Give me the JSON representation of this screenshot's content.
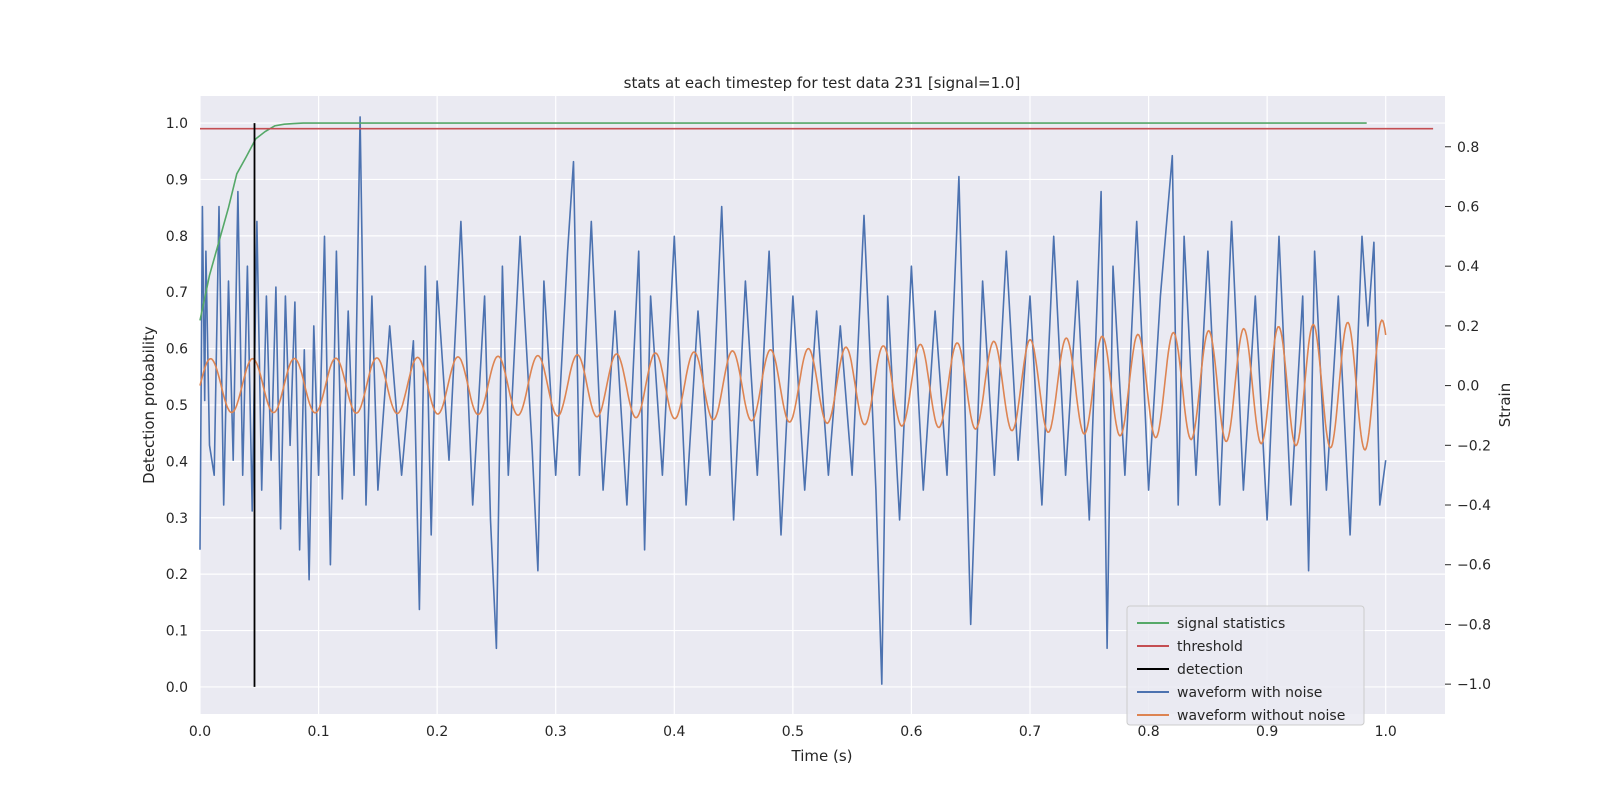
{
  "chart_data": {
    "type": "line",
    "title": "stats at each timestep for test data 231 [signal=1.0]",
    "xlabel": "Time (s)",
    "ylabel_left": "Detection probability",
    "ylabel_right": "Strain",
    "xlim": [
      0.0,
      1.05
    ],
    "ylim_left": [
      -0.048,
      1.048
    ],
    "ylim_right": [
      -1.1,
      0.97
    ],
    "x_ticks": [
      0.0,
      0.1,
      0.2,
      0.3,
      0.4,
      0.5,
      0.6,
      0.7,
      0.8,
      0.9,
      1.0
    ],
    "x_tick_labels": [
      "0.0",
      "0.1",
      "0.2",
      "0.3",
      "0.4",
      "0.5",
      "0.6",
      "0.7",
      "0.8",
      "0.9",
      "1.0"
    ],
    "y_left_ticks": [
      0.0,
      0.1,
      0.2,
      0.3,
      0.4,
      0.5,
      0.6,
      0.7,
      0.8,
      0.9,
      1.0
    ],
    "y_left_tick_labels": [
      "0.0",
      "0.1",
      "0.2",
      "0.3",
      "0.4",
      "0.5",
      "0.6",
      "0.7",
      "0.8",
      "0.9",
      "1.0"
    ],
    "y_right_ticks": [
      -1.0,
      -0.8,
      -0.6,
      -0.4,
      -0.2,
      0.0,
      0.2,
      0.4,
      0.6,
      0.8
    ],
    "y_right_tick_labels": [
      "−1.0",
      "−0.8",
      "−0.6",
      "−0.4",
      "−0.2",
      "0.0",
      "0.2",
      "0.4",
      "0.6",
      "0.8"
    ],
    "grid": true,
    "legend_position": "bottom-right",
    "series": [
      {
        "name": "signal statistics",
        "axis": "left",
        "color": "#55a868",
        "x": [
          0.0,
          0.008,
          0.016,
          0.024,
          0.031,
          0.039,
          0.047,
          0.055,
          0.063,
          0.071,
          0.079,
          0.087,
          0.1,
          0.2,
          0.3,
          0.4,
          0.5,
          0.6,
          0.7,
          0.8,
          0.9,
          0.984
        ],
        "y": [
          0.65,
          0.73,
          0.79,
          0.85,
          0.91,
          0.94,
          0.972,
          0.985,
          0.995,
          0.998,
          0.999,
          1.0,
          1.0,
          1.0,
          1.0,
          1.0,
          1.0,
          1.0,
          1.0,
          1.0,
          1.0,
          1.0
        ]
      },
      {
        "name": "threshold",
        "axis": "left",
        "color": "#c44e52",
        "x": [
          0.0,
          1.04
        ],
        "y": [
          0.99,
          0.99
        ]
      },
      {
        "name": "detection",
        "axis": "left",
        "color": "#000000",
        "x": [
          0.046,
          0.046
        ],
        "y": [
          0.0,
          1.0
        ]
      },
      {
        "name": "waveform with noise",
        "axis": "right",
        "color": "#4c72b0",
        "x": [
          0.0,
          0.002,
          0.004,
          0.005,
          0.008,
          0.012,
          0.016,
          0.02,
          0.024,
          0.028,
          0.032,
          0.036,
          0.04,
          0.044,
          0.048,
          0.052,
          0.056,
          0.06,
          0.064,
          0.068,
          0.072,
          0.076,
          0.08,
          0.084,
          0.088,
          0.092,
          0.096,
          0.1,
          0.105,
          0.11,
          0.115,
          0.12,
          0.125,
          0.13,
          0.135,
          0.14,
          0.145,
          0.15,
          0.16,
          0.17,
          0.18,
          0.185,
          0.19,
          0.195,
          0.2,
          0.21,
          0.22,
          0.23,
          0.24,
          0.245,
          0.25,
          0.255,
          0.26,
          0.27,
          0.28,
          0.285,
          0.29,
          0.3,
          0.31,
          0.315,
          0.32,
          0.33,
          0.34,
          0.35,
          0.36,
          0.37,
          0.375,
          0.38,
          0.39,
          0.4,
          0.41,
          0.42,
          0.43,
          0.44,
          0.45,
          0.46,
          0.47,
          0.48,
          0.49,
          0.5,
          0.51,
          0.52,
          0.53,
          0.54,
          0.55,
          0.56,
          0.57,
          0.575,
          0.58,
          0.59,
          0.6,
          0.61,
          0.62,
          0.63,
          0.64,
          0.65,
          0.66,
          0.67,
          0.68,
          0.69,
          0.7,
          0.71,
          0.72,
          0.73,
          0.74,
          0.75,
          0.76,
          0.765,
          0.77,
          0.78,
          0.79,
          0.8,
          0.81,
          0.82,
          0.825,
          0.83,
          0.84,
          0.85,
          0.86,
          0.87,
          0.88,
          0.89,
          0.9,
          0.91,
          0.92,
          0.93,
          0.935,
          0.94,
          0.95,
          0.96,
          0.97,
          0.98,
          0.985,
          0.99,
          0.995,
          1.0
        ],
        "y": [
          -0.55,
          0.6,
          -0.05,
          0.45,
          -0.2,
          -0.3,
          0.6,
          -0.4,
          0.35,
          -0.25,
          0.65,
          -0.3,
          0.4,
          -0.42,
          0.55,
          -0.35,
          0.3,
          -0.25,
          0.33,
          -0.48,
          0.3,
          -0.2,
          0.28,
          -0.55,
          0.12,
          -0.65,
          0.2,
          -0.3,
          0.5,
          -0.6,
          0.45,
          -0.38,
          0.25,
          -0.3,
          0.9,
          -0.4,
          0.3,
          -0.35,
          0.2,
          -0.3,
          0.15,
          -0.75,
          0.4,
          -0.5,
          0.35,
          -0.25,
          0.55,
          -0.4,
          0.3,
          -0.45,
          -0.88,
          0.4,
          -0.3,
          0.5,
          -0.2,
          -0.62,
          0.35,
          -0.3,
          0.45,
          0.75,
          -0.3,
          0.55,
          -0.35,
          0.25,
          -0.4,
          0.45,
          -0.55,
          0.3,
          -0.3,
          0.5,
          -0.4,
          0.25,
          -0.3,
          0.6,
          -0.45,
          0.35,
          -0.3,
          0.45,
          -0.5,
          0.3,
          -0.35,
          0.25,
          -0.3,
          0.2,
          -0.3,
          0.57,
          -0.35,
          -1.0,
          0.3,
          -0.45,
          0.4,
          -0.35,
          0.25,
          -0.3,
          0.7,
          -0.8,
          0.35,
          -0.3,
          0.45,
          -0.25,
          0.3,
          -0.4,
          0.5,
          -0.3,
          0.35,
          -0.45,
          0.65,
          -0.88,
          0.4,
          -0.3,
          0.55,
          -0.35,
          0.3,
          0.77,
          -0.4,
          0.5,
          -0.3,
          0.45,
          -0.4,
          0.55,
          -0.35,
          0.3,
          -0.45,
          0.5,
          -0.4,
          0.3,
          -0.62,
          0.45,
          -0.35,
          0.3,
          -0.5,
          0.5,
          0.2,
          0.48,
          -0.4,
          -0.25
        ]
      },
      {
        "name": "waveform without noise",
        "axis": "right",
        "color": "#dd8452",
        "x_start": 0.0,
        "x_end": 1.0,
        "cycles": 28,
        "amplitude_start": 0.09,
        "amplitude_end": 0.22
      }
    ]
  }
}
